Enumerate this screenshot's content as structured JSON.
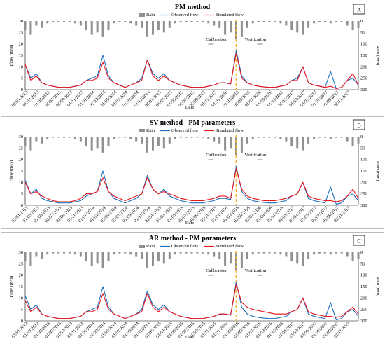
{
  "chart_data": [
    {
      "type": "line",
      "letter": "A",
      "title": "PM method",
      "xlabel": "Date",
      "ylabel": "Flow (m³/s)",
      "y2label": "Rain (mm)",
      "ylim": [
        0,
        30
      ],
      "y2lim": [
        300,
        0
      ],
      "yticks": [
        0,
        5,
        10,
        15,
        20,
        25,
        30
      ],
      "y2ticks": [
        0,
        50,
        100,
        150,
        200,
        250,
        300
      ],
      "legend": [
        "Rain",
        "Observed flow",
        "Simulated flow"
      ],
      "annotations": {
        "calibration": "Calibration",
        "verification": "Verification"
      },
      "x_ticks": [
        "01/01/2013",
        "01/03/2013",
        "01/05/2013",
        "01/07/2013",
        "01/09/2013",
        "01/11/2013",
        "01/01/2014",
        "01/03/2014",
        "01/05/2014",
        "01/07/2014",
        "01/09/2014",
        "01/11/2014",
        "01/01/2015",
        "01/03/2015",
        "01/05/2015",
        "01/07/2015",
        "01/09/2015",
        "01/11/2015",
        "01/01/2016",
        "01/03/2016",
        "01/05/2016",
        "01/07/2016",
        "01/09/2016",
        "01/11/2016",
        "01/01/2017",
        "01/03/2017",
        "01/05/2017",
        "01/07/2017",
        "01/09/2017",
        "01/11/2017"
      ],
      "split_month": 38,
      "x": [
        0,
        1,
        2,
        3,
        4,
        5,
        6,
        7,
        8,
        9,
        10,
        11,
        12,
        13,
        14,
        15,
        16,
        17,
        18,
        19,
        20,
        21,
        22,
        23,
        24,
        25,
        26,
        27,
        28,
        29,
        30,
        31,
        32,
        33,
        34,
        35,
        36,
        37,
        38,
        39,
        40,
        41,
        42,
        43,
        44,
        45,
        46,
        47,
        48,
        49,
        50,
        51,
        52,
        53,
        54,
        55,
        56,
        57,
        58,
        59,
        60
      ],
      "series": [
        {
          "name": "Observed flow",
          "color": "#1f6fbf",
          "values": [
            11,
            5,
            7,
            3,
            2,
            1.5,
            1,
            1,
            1,
            1.5,
            2,
            4,
            5,
            6,
            15,
            6,
            3,
            2,
            1,
            2,
            3,
            5,
            13,
            7,
            5,
            7,
            4,
            3,
            2,
            1.5,
            1,
            1,
            1,
            1.5,
            2,
            3,
            3,
            2.5,
            17,
            6,
            3,
            2,
            1.5,
            1.2,
            1,
            1,
            1.5,
            2,
            4,
            5,
            10,
            3,
            2,
            1.5,
            1,
            8,
            0.5,
            1,
            4,
            5,
            2
          ]
        },
        {
          "name": "Simulated flow",
          "color": "#e8141b",
          "values": [
            11,
            4,
            6,
            3,
            2,
            1.5,
            1,
            1,
            1,
            1.5,
            2,
            4,
            4,
            5,
            12,
            5,
            3,
            2,
            1,
            2,
            3,
            4,
            13,
            6,
            4,
            6,
            4,
            3,
            2,
            1.5,
            1,
            1,
            1,
            1.5,
            2,
            3,
            3,
            2.5,
            16,
            5,
            3,
            2,
            1.5,
            1.2,
            1,
            1,
            1.5,
            2,
            4,
            4,
            10,
            3,
            2,
            1.5,
            1,
            1.5,
            0.5,
            1,
            4,
            7,
            2
          ]
        },
        {
          "name": "Rain",
          "color": "#909090",
          "values": [
            40,
            60,
            20,
            30,
            10,
            5,
            5,
            5,
            5,
            10,
            20,
            40,
            60,
            50,
            70,
            40,
            10,
            5,
            5,
            10,
            20,
            30,
            70,
            60,
            40,
            50,
            30,
            10,
            5,
            5,
            5,
            5,
            5,
            10,
            20,
            30,
            60,
            50,
            80,
            70,
            30,
            10,
            5,
            5,
            5,
            5,
            10,
            20,
            40,
            50,
            60,
            30,
            10,
            5,
            5,
            10,
            5,
            5,
            20,
            40,
            30
          ]
        }
      ]
    },
    {
      "type": "line",
      "letter": "B",
      "title": "SV method - PM parameters",
      "xlabel": "Date",
      "ylabel": "Flow (m³/s)",
      "y2label": "Rain (mm)",
      "ylim": [
        0,
        30
      ],
      "y2lim": [
        300,
        0
      ],
      "yticks": [
        0,
        5,
        10,
        15,
        20,
        25,
        30
      ],
      "y2ticks": [
        0,
        50,
        100,
        150,
        200,
        250,
        300
      ],
      "legend": [
        "Rain",
        "Observed flow",
        "Simulated flow"
      ],
      "annotations": {
        "calibration": "Calibration",
        "verification": "Verification"
      },
      "x_ticks": [
        "01/01/2013",
        "01/03/2013",
        "01/05/2013",
        "01/07/2013",
        "01/09/2013",
        "01/11/2013",
        "01/01/2014",
        "01/03/2014",
        "01/05/2014",
        "01/07/2014",
        "01/09/2014",
        "01/11/2014",
        "01/01/2015",
        "01/03/2015",
        "01/05/2015",
        "01/07/2015",
        "01/09/2015",
        "01/11/2015",
        "01/01/2016",
        "01/03/2016",
        "01/05/2016",
        "01/07/2016",
        "01/09/2016",
        "01/11/2016",
        "01/01/2017",
        "01/03/2017",
        "01/05/2017",
        "01/07/2017",
        "01/09/2017",
        "01/11/2017"
      ],
      "split_month": 38,
      "x": [
        0,
        1,
        2,
        3,
        4,
        5,
        6,
        7,
        8,
        9,
        10,
        11,
        12,
        13,
        14,
        15,
        16,
        17,
        18,
        19,
        20,
        21,
        22,
        23,
        24,
        25,
        26,
        27,
        28,
        29,
        30,
        31,
        32,
        33,
        34,
        35,
        36,
        37,
        38,
        39,
        40,
        41,
        42,
        43,
        44,
        45,
        46,
        47,
        48,
        49,
        50,
        51,
        52,
        53,
        54,
        55,
        56,
        57,
        58,
        59,
        60
      ],
      "series": [
        {
          "name": "Observed flow",
          "color": "#1f6fbf",
          "values": [
            11,
            5,
            7,
            3,
            2,
            1.5,
            1,
            1,
            1,
            1.5,
            2,
            4,
            5,
            6,
            15,
            6,
            3,
            2,
            1,
            2,
            3,
            5,
            13,
            7,
            5,
            7,
            4,
            3,
            2,
            1.5,
            1,
            1,
            1,
            1.5,
            2,
            3,
            3,
            2.5,
            17,
            6,
            3,
            2,
            1.5,
            1.2,
            1,
            1,
            1.5,
            2,
            4,
            5,
            10,
            3,
            2,
            1.5,
            1,
            8,
            0.5,
            1,
            4,
            5,
            2
          ]
        },
        {
          "name": "Simulated flow",
          "color": "#e8141b",
          "values": [
            10,
            5,
            6,
            4,
            3,
            2,
            1.5,
            1.5,
            1.5,
            2,
            3,
            5,
            5,
            6,
            12,
            6,
            4,
            3,
            2,
            3,
            4,
            5,
            12,
            7,
            5,
            6,
            5,
            4,
            3,
            2.5,
            2,
            2,
            2,
            2.5,
            3,
            4,
            4,
            3,
            16,
            7,
            4,
            3,
            2.5,
            2,
            2,
            2,
            2.5,
            3,
            4,
            5,
            10,
            4,
            3,
            2.5,
            2,
            2,
            1.5,
            2,
            4,
            7,
            3
          ]
        },
        {
          "name": "Rain",
          "color": "#909090",
          "values": [
            40,
            60,
            20,
            30,
            10,
            5,
            5,
            5,
            5,
            10,
            20,
            40,
            60,
            50,
            70,
            40,
            10,
            5,
            5,
            10,
            20,
            30,
            70,
            60,
            40,
            50,
            30,
            10,
            5,
            5,
            5,
            5,
            5,
            10,
            20,
            30,
            60,
            50,
            80,
            70,
            30,
            10,
            5,
            5,
            5,
            5,
            10,
            20,
            40,
            50,
            60,
            30,
            10,
            5,
            5,
            10,
            5,
            5,
            20,
            40,
            30
          ]
        }
      ]
    },
    {
      "type": "line",
      "letter": "C",
      "title": "AR method -  PM parameters",
      "xlabel": "Date",
      "ylabel": "Flow (m³/s)",
      "y2label": "Rain (mm)",
      "ylim": [
        0,
        30
      ],
      "y2lim": [
        300,
        0
      ],
      "yticks": [
        0,
        5,
        10,
        15,
        20,
        25,
        30
      ],
      "y2ticks": [
        0,
        50,
        100,
        150,
        200,
        250,
        300
      ],
      "legend": [
        "Rain",
        "Observed flow",
        "Simulated flow"
      ],
      "annotations": {
        "calibration": "Calibration",
        "verification": "Verification"
      },
      "x_ticks": [
        "01/01/2013",
        "01/03/2013",
        "01/05/2013",
        "01/07/2013",
        "01/09/2013",
        "01/11/2013",
        "01/01/2014",
        "01/03/2014",
        "01/05/2014",
        "01/07/2014",
        "01/09/2014",
        "01/11/2014",
        "01/01/2015",
        "01/03/2015",
        "01/05/2015",
        "01/07/2015",
        "01/09/2015",
        "01/11/2015",
        "01/01/2016",
        "01/03/2016",
        "01/05/2016",
        "01/07/2016",
        "01/09/2016",
        "01/11/2016",
        "01/01/2017",
        "01/03/2017",
        "01/05/2017",
        "01/07/2017",
        "01/09/2017",
        "01/11/2017"
      ],
      "split_month": 38,
      "x": [
        0,
        1,
        2,
        3,
        4,
        5,
        6,
        7,
        8,
        9,
        10,
        11,
        12,
        13,
        14,
        15,
        16,
        17,
        18,
        19,
        20,
        21,
        22,
        23,
        24,
        25,
        26,
        27,
        28,
        29,
        30,
        31,
        32,
        33,
        34,
        35,
        36,
        37,
        38,
        39,
        40,
        41,
        42,
        43,
        44,
        45,
        46,
        47,
        48,
        49,
        50,
        51,
        52,
        53,
        54,
        55,
        56,
        57,
        58,
        59,
        60
      ],
      "series": [
        {
          "name": "Observed flow",
          "color": "#1f6fbf",
          "values": [
            11,
            5,
            7,
            3,
            2,
            1.5,
            1,
            1,
            1,
            1.5,
            2,
            4,
            5,
            6,
            15,
            6,
            3,
            2,
            1,
            2,
            3,
            5,
            13,
            7,
            5,
            7,
            4,
            3,
            2,
            1.5,
            1,
            1,
            1,
            1.5,
            2,
            3,
            3,
            2.5,
            17,
            6,
            3,
            2,
            1.5,
            1.2,
            1,
            1,
            1.5,
            2,
            4,
            5,
            10,
            3,
            2,
            1.5,
            1,
            8,
            0.5,
            1,
            4,
            5,
            2
          ]
        },
        {
          "name": "Simulated flow",
          "color": "#e8141b",
          "values": [
            9,
            4,
            6,
            3,
            2,
            1.5,
            1,
            1,
            1,
            1.5,
            2,
            4,
            4,
            5,
            12,
            5,
            3,
            2,
            1,
            2,
            3,
            4,
            12,
            6,
            4,
            6,
            4,
            3,
            2,
            1.5,
            1,
            1,
            1,
            1.5,
            2,
            3,
            3,
            2.5,
            16,
            8,
            6,
            5,
            4.5,
            4,
            3.5,
            3,
            3,
            3,
            4,
            5,
            10,
            4,
            3,
            2.5,
            2,
            2,
            1.5,
            2,
            4,
            6,
            3
          ]
        },
        {
          "name": "Rain",
          "color": "#909090",
          "values": [
            40,
            60,
            20,
            30,
            10,
            5,
            5,
            5,
            5,
            10,
            20,
            40,
            60,
            50,
            70,
            40,
            10,
            5,
            5,
            10,
            20,
            30,
            70,
            60,
            40,
            50,
            30,
            10,
            5,
            5,
            5,
            5,
            5,
            10,
            20,
            30,
            60,
            50,
            80,
            70,
            30,
            10,
            5,
            5,
            5,
            5,
            10,
            20,
            40,
            50,
            60,
            30,
            10,
            5,
            5,
            10,
            5,
            5,
            20,
            40,
            30
          ]
        }
      ]
    }
  ]
}
